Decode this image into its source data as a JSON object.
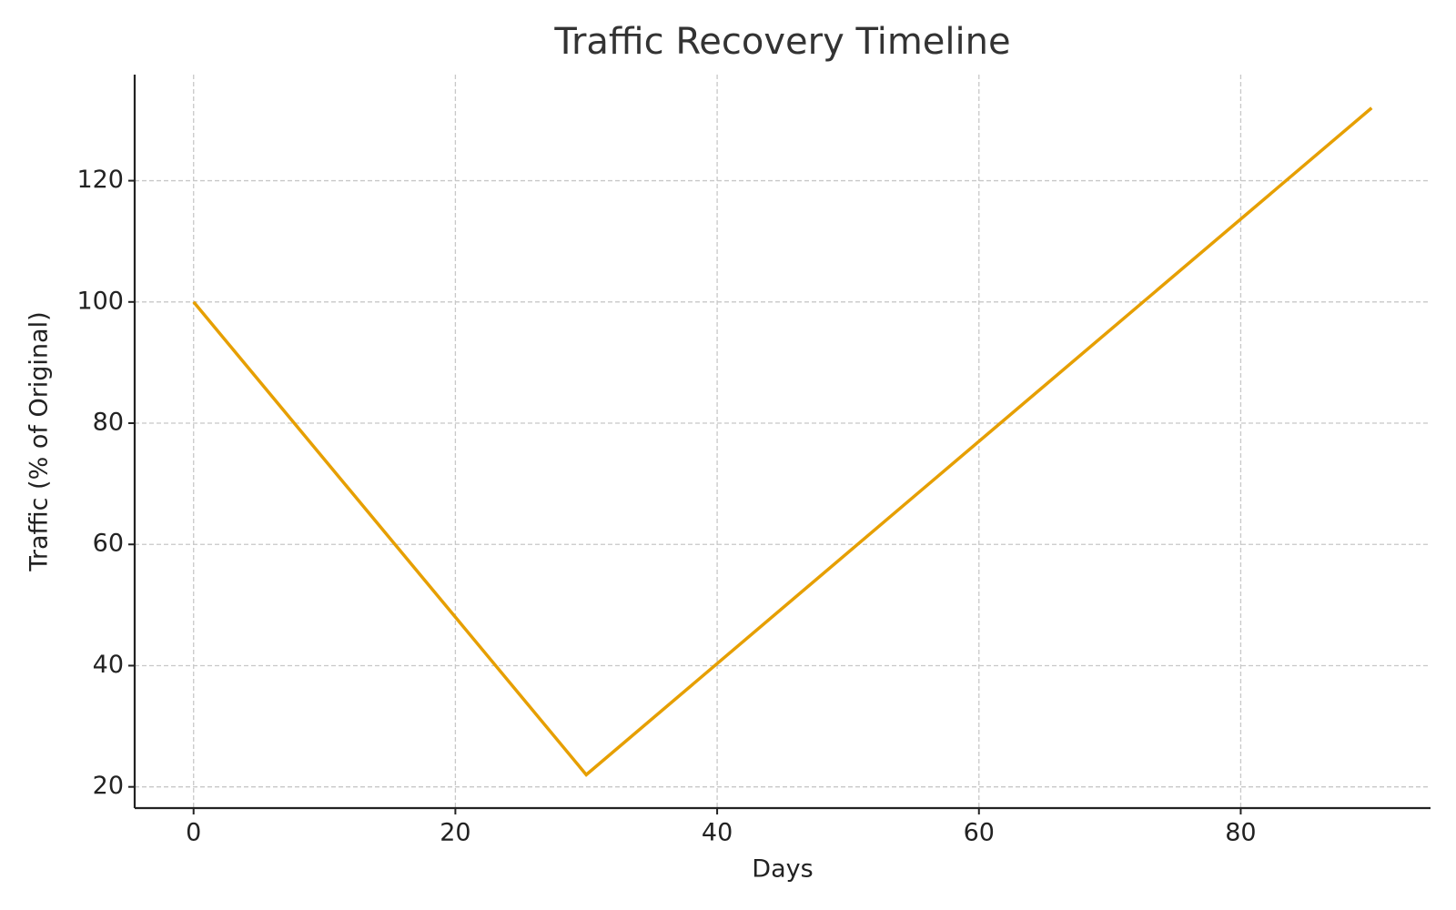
{
  "chart_data": {
    "type": "line",
    "title": "Traffic Recovery Timeline",
    "x_label": "Days",
    "y_label": "Traffic (% of Original)",
    "x": [
      0,
      30,
      90
    ],
    "series": [
      {
        "name": "Traffic",
        "color": "#e69f00",
        "values": [
          100,
          22,
          132
        ]
      }
    ],
    "xlim": [
      -4.5,
      94.5
    ],
    "ylim": [
      16.5,
      137.5
    ],
    "xticks": [
      0,
      20,
      40,
      60,
      80
    ],
    "yticks": [
      20,
      40,
      60,
      80,
      100,
      120
    ],
    "grid": true
  }
}
